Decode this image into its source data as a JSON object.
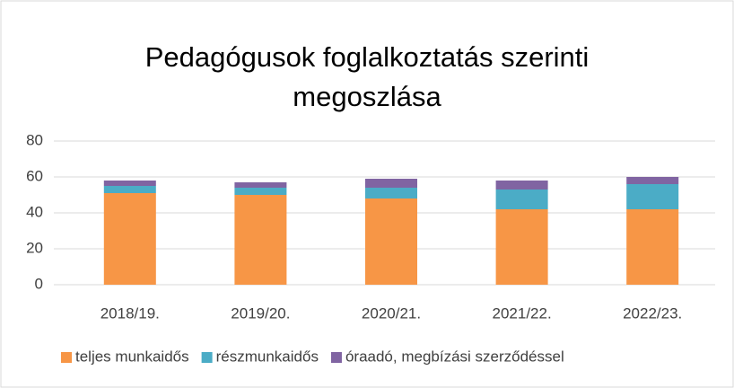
{
  "chart_data": {
    "type": "stacked_bar",
    "title": "Pedagógusok foglalkoztatás szerinti megoszlása",
    "categories": [
      "2018/19.",
      "2019/20.",
      "2020/21.",
      "2021/22.",
      "2022/23."
    ],
    "series": [
      {
        "name": "teljes munkaidős",
        "color": "#f79646",
        "values": [
          51,
          50,
          48,
          42,
          42
        ]
      },
      {
        "name": "részmunkaidős",
        "color": "#4bacc6",
        "values": [
          4,
          4,
          6,
          11,
          14
        ]
      },
      {
        "name": "óraadó, megbízási szerződéssel",
        "color": "#8064a2",
        "values": [
          3,
          3,
          5,
          5,
          4
        ]
      }
    ],
    "ylim": [
      0,
      80
    ],
    "yticks": [
      0,
      20,
      40,
      60,
      80
    ],
    "grid": true,
    "legend": "bottom"
  }
}
